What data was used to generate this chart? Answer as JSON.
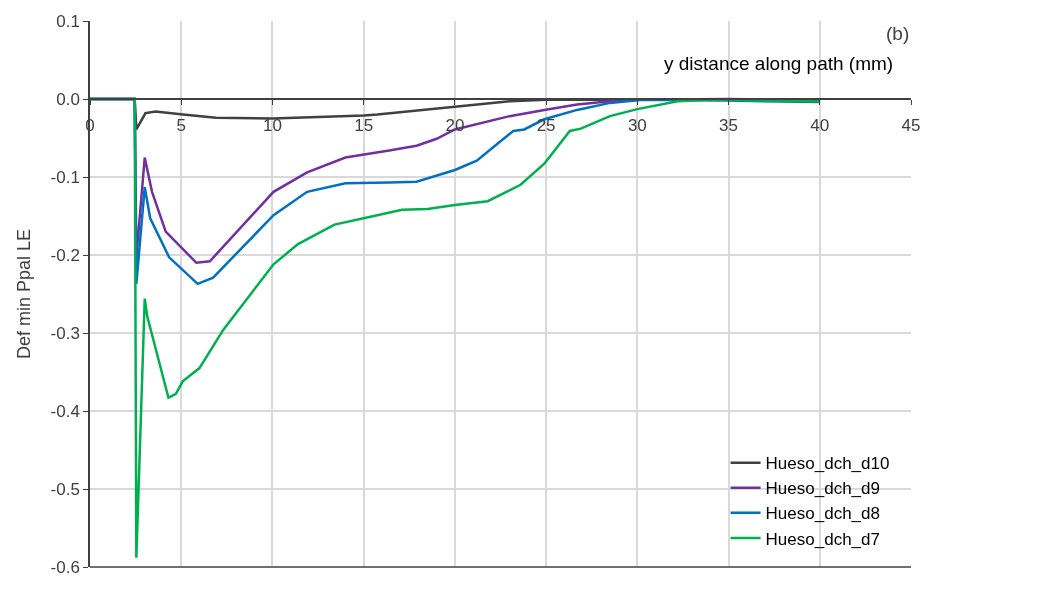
{
  "chart_data": {
    "type": "line",
    "xlabel": "y distance along path (mm)",
    "ylabel": "Def min Ppal LE",
    "annotations": [
      "(b)"
    ],
    "xlim": [
      0,
      45
    ],
    "xticks": [
      0,
      5,
      10,
      15,
      20,
      25,
      30,
      35,
      40,
      45
    ],
    "ylim": [
      -0.6,
      0.1
    ],
    "yticks": [
      {
        "value": 0.1,
        "label": "0.1"
      },
      {
        "value": 0,
        "label": "0.0"
      },
      {
        "value": -0.1,
        "label": "-0.1"
      },
      {
        "value": -0.2,
        "label": "-0.2"
      },
      {
        "value": -0.3,
        "label": "-0.3"
      },
      {
        "value": -0.4,
        "label": "-0.4"
      },
      {
        "value": -0.5,
        "label": "-0.5"
      },
      {
        "value": -0.6,
        "label": "-0.6"
      }
    ],
    "grid": true,
    "legend": "bottom right",
    "marker": "none",
    "line_style": "solid",
    "series": [
      {
        "name": "Hueso_dch_d10",
        "color": "#404040",
        "x": [
          0,
          2.45,
          2.54,
          3.04,
          3.6,
          5.1,
          6.9,
          10,
          15,
          15.75,
          20,
          23,
          25,
          30,
          35,
          40
        ],
        "values": [
          0,
          0,
          -0.039,
          -0.018,
          -0.016,
          -0.02,
          -0.024,
          -0.025,
          -0.021,
          -0.02,
          -0.01,
          -0.003,
          -0.001,
          -0.001,
          -0.001,
          -0.001
        ]
      },
      {
        "name": "Hueso_dch_d9",
        "color": "#7030a0",
        "x": [
          0,
          2.45,
          2.54,
          3.0,
          3.4,
          4.15,
          5.83,
          6.57,
          10.06,
          11.9,
          14.0,
          16.4,
          17.9,
          19.0,
          20,
          23.0,
          24.9,
          26.7,
          28.5,
          30,
          35,
          40
        ],
        "values": [
          0,
          0,
          -0.203,
          -0.075,
          -0.119,
          -0.17,
          -0.21,
          -0.208,
          -0.119,
          -0.094,
          -0.075,
          -0.066,
          -0.06,
          -0.051,
          -0.039,
          -0.022,
          -0.014,
          -0.007,
          -0.003,
          -0.001,
          0,
          -0.002
        ]
      },
      {
        "name": "Hueso_dch_d8",
        "color": "#0070c0",
        "x": [
          0,
          2.45,
          2.54,
          3.0,
          3.3,
          4.34,
          5.9,
          6.75,
          10.06,
          11.9,
          14.0,
          16.4,
          17.9,
          20,
          21.2,
          22.3,
          23.2,
          23.8,
          24.9,
          26.7,
          28.5,
          30.3,
          35,
          40
        ],
        "values": [
          0,
          0,
          -0.237,
          -0.113,
          -0.153,
          -0.203,
          -0.237,
          -0.229,
          -0.149,
          -0.119,
          -0.108,
          -0.107,
          -0.106,
          -0.091,
          -0.079,
          -0.058,
          -0.041,
          -0.039,
          -0.026,
          -0.014,
          -0.005,
          -0.001,
          -0.002,
          -0.004
        ]
      },
      {
        "name": "Hueso_dch_d7",
        "color": "#00b050",
        "x": [
          0,
          2.45,
          2.54,
          3.0,
          3.14,
          4.3,
          4.71,
          5.08,
          6.0,
          7.3,
          10.06,
          11.4,
          13.4,
          15.75,
          17.1,
          18.5,
          20,
          21.8,
          23.6,
          24.9,
          26.3,
          26.9,
          28.5,
          30,
          32.2,
          34,
          39.9,
          40
        ],
        "values": [
          0,
          0,
          -0.588,
          -0.256,
          -0.279,
          -0.383,
          -0.378,
          -0.362,
          -0.345,
          -0.296,
          -0.212,
          -0.186,
          -0.161,
          -0.149,
          -0.142,
          -0.141,
          -0.136,
          -0.131,
          -0.11,
          -0.083,
          -0.041,
          -0.038,
          -0.022,
          -0.013,
          -0.003,
          -0.001,
          -0.003,
          -0.004
        ]
      }
    ]
  }
}
